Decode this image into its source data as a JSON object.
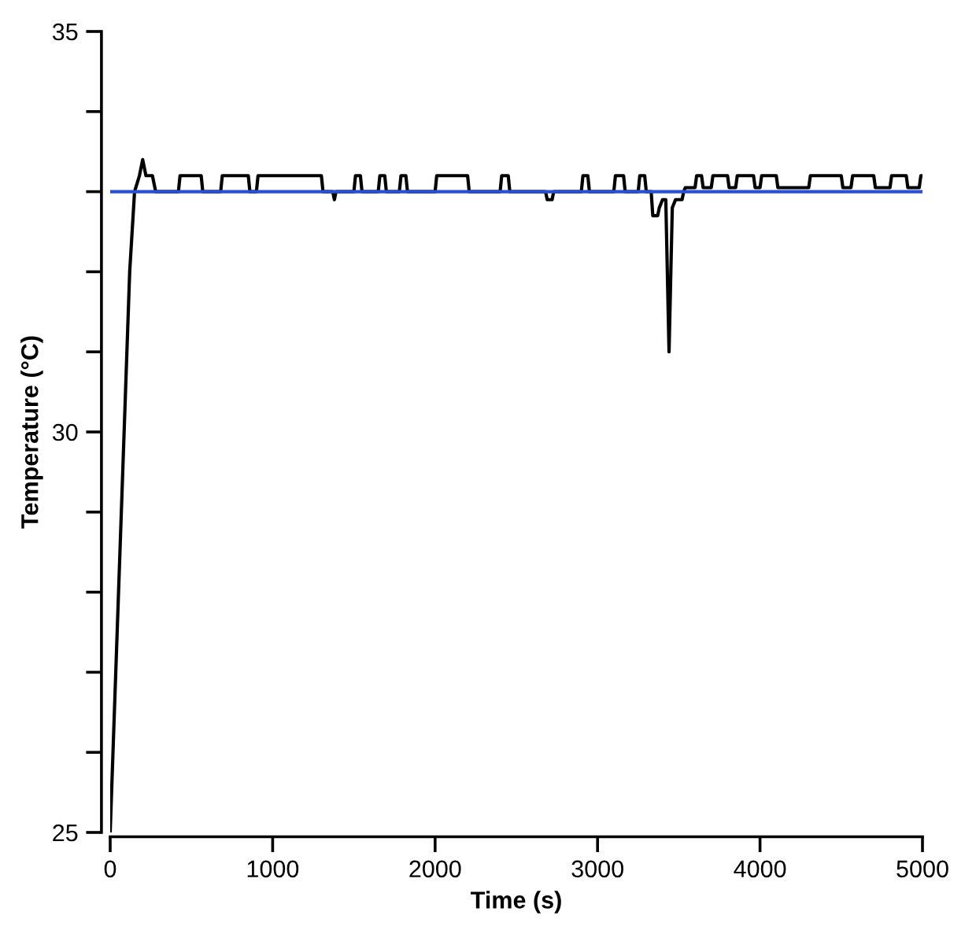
{
  "chart_data": {
    "type": "line",
    "xlabel": "Time (s)",
    "ylabel": "Temperature (°C)",
    "xlim": [
      0,
      5000
    ],
    "ylim": [
      25,
      35
    ],
    "xticks": [
      0,
      1000,
      2000,
      3000,
      4000,
      5000
    ],
    "yticks": [
      25,
      {
        "value": 26,
        "label": null
      },
      {
        "value": 27,
        "label": null
      },
      {
        "value": 28,
        "label": null
      },
      {
        "value": 29,
        "label": null
      },
      30,
      {
        "value": 31,
        "label": null
      },
      {
        "value": 32,
        "label": null
      },
      {
        "value": 33,
        "label": null
      },
      {
        "value": 34,
        "label": null
      },
      35
    ],
    "grid": false,
    "legend": false,
    "marker": "none",
    "line_style": "solid",
    "series": [
      {
        "color": "#000000",
        "x": [
          0,
          60,
          120,
          150,
          180,
          200,
          220,
          260,
          280,
          420,
          430,
          560,
          570,
          680,
          690,
          850,
          860,
          900,
          910,
          1300,
          1310,
          1370,
          1380,
          1390,
          1500,
          1510,
          1540,
          1550,
          1650,
          1660,
          1690,
          1700,
          1780,
          1790,
          1820,
          1830,
          2000,
          2010,
          2200,
          2210,
          2400,
          2410,
          2450,
          2460,
          2680,
          2690,
          2720,
          2730,
          2900,
          2910,
          2940,
          2950,
          3100,
          3110,
          3160,
          3170,
          3250,
          3260,
          3290,
          3300,
          3330,
          3340,
          3370,
          3380,
          3400,
          3420,
          3440,
          3460,
          3480,
          3520,
          3530,
          3540,
          3600,
          3610,
          3640,
          3650,
          3700,
          3710,
          3800,
          3810,
          3850,
          3860,
          3960,
          3970,
          4000,
          4010,
          4100,
          4110,
          4300,
          4310,
          4500,
          4510,
          4560,
          4570,
          4700,
          4710,
          4800,
          4810,
          4900,
          4910,
          4980,
          4990,
          5000
        ],
        "values": [
          25.0,
          28.5,
          32.0,
          33.0,
          33.2,
          33.4,
          33.2,
          33.2,
          33.0,
          33.0,
          33.2,
          33.2,
          33.0,
          33.0,
          33.2,
          33.2,
          33.0,
          33.0,
          33.2,
          33.2,
          33.0,
          33.0,
          32.9,
          33.0,
          33.0,
          33.2,
          33.2,
          33.0,
          33.0,
          33.2,
          33.2,
          33.0,
          33.0,
          33.2,
          33.2,
          33.0,
          33.0,
          33.2,
          33.2,
          33.0,
          33.0,
          33.2,
          33.2,
          33.0,
          33.0,
          32.9,
          32.9,
          33.0,
          33.0,
          33.2,
          33.2,
          33.0,
          33.0,
          33.2,
          33.2,
          33.0,
          33.0,
          33.2,
          33.2,
          33.0,
          33.0,
          32.7,
          32.7,
          32.8,
          32.9,
          32.9,
          31.0,
          32.8,
          32.9,
          32.9,
          33.0,
          33.05,
          33.05,
          33.2,
          33.2,
          33.05,
          33.05,
          33.2,
          33.2,
          33.05,
          33.05,
          33.2,
          33.2,
          33.05,
          33.05,
          33.2,
          33.2,
          33.05,
          33.05,
          33.2,
          33.2,
          33.05,
          33.05,
          33.2,
          33.2,
          33.05,
          33.05,
          33.2,
          33.2,
          33.05,
          33.05,
          33.2,
          33.2
        ]
      },
      {
        "color": "#2a4fd0",
        "x": [
          0,
          5000
        ],
        "values": [
          33.0,
          33.0
        ]
      }
    ]
  }
}
